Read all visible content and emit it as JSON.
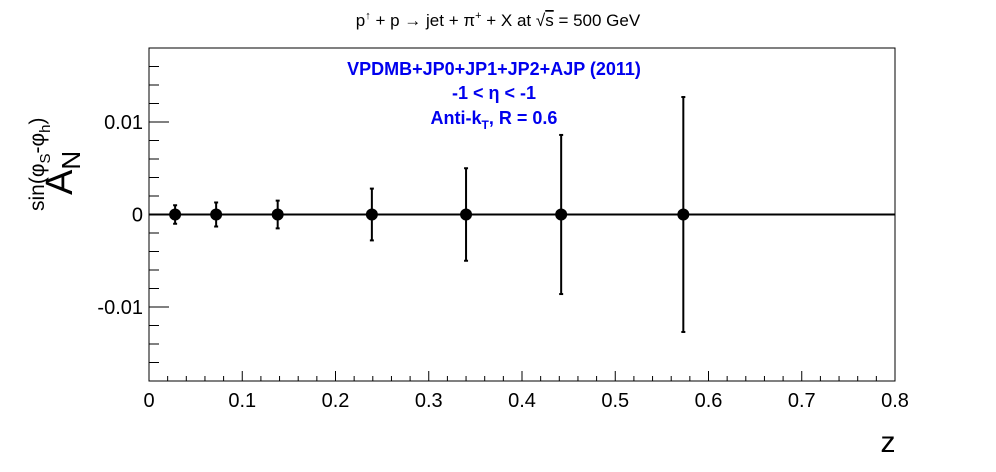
{
  "chart_data": {
    "type": "scatter",
    "title": {
      "p": "p",
      "p_arrow": "↑",
      "plus_p_arrow": " + p → jet + π",
      "pi_sup": "+",
      "rest1": " + X at ",
      "sqrt": "√",
      "s": "s",
      "rest2": " = 500 GeV"
    },
    "annotations": {
      "line1": "VPDMB+JP0+JP1+JP2+AJP (2011)",
      "line2": "-1 < η < -1",
      "line3_pre": "Anti-k",
      "line3_sub": "T",
      "line3_post": ", R = 0.6"
    },
    "xlabel": "z",
    "ylabel": {
      "main": "A",
      "sub": "N",
      "sup": "sin(φ",
      "sup_s": "S",
      "sup_mid": "-φ",
      "sup_h": "h",
      "sup_end": ")"
    },
    "xlim": [
      0,
      0.8
    ],
    "ylim": [
      -0.018,
      0.018
    ],
    "x_ticks": [
      {
        "value": 0,
        "label": "0"
      },
      {
        "value": 0.1,
        "label": "0.1"
      },
      {
        "value": 0.2,
        "label": "0.2"
      },
      {
        "value": 0.3,
        "label": "0.3"
      },
      {
        "value": 0.4,
        "label": "0.4"
      },
      {
        "value": 0.5,
        "label": "0.5"
      },
      {
        "value": 0.6,
        "label": "0.6"
      },
      {
        "value": 0.7,
        "label": "0.7"
      },
      {
        "value": 0.8,
        "label": "0.8"
      }
    ],
    "y_ticks": [
      {
        "value": -0.01,
        "label": "-0.01"
      },
      {
        "value": 0,
        "label": "0"
      },
      {
        "value": 0.01,
        "label": "0.01"
      }
    ],
    "reference_line": 0,
    "points": [
      {
        "x": 0.028,
        "y": 0,
        "err": 0.001
      },
      {
        "x": 0.072,
        "y": 0,
        "err": 0.0013
      },
      {
        "x": 0.138,
        "y": 0,
        "err": 0.0015
      },
      {
        "x": 0.239,
        "y": 0,
        "err": 0.0028
      },
      {
        "x": 0.34,
        "y": 0,
        "err": 0.005
      },
      {
        "x": 0.442,
        "y": 0,
        "err": 0.0086
      },
      {
        "x": 0.573,
        "y": 0,
        "err": 0.0127
      }
    ],
    "grid": false,
    "colors": {
      "markers": "#000000",
      "annotation": "#0000ee",
      "axes": "#000000"
    }
  }
}
